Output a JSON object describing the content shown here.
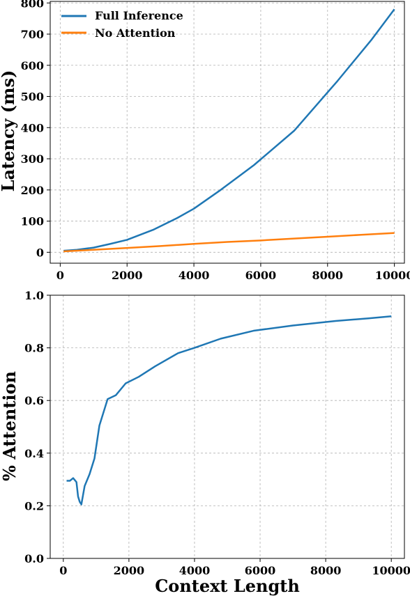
{
  "chart_data": [
    {
      "type": "line",
      "title": "",
      "xlabel": "",
      "ylabel": "Latency (ms)",
      "xlim": [
        -300,
        10300
      ],
      "ylim": [
        -35,
        805
      ],
      "xticks": [
        0,
        2000,
        4000,
        6000,
        8000,
        10000
      ],
      "yticks": [
        0,
        100,
        200,
        300,
        400,
        500,
        600,
        700,
        800
      ],
      "xtick_labels": [
        "0",
        "2000",
        "4000",
        "6000",
        "8000",
        "10000"
      ],
      "ytick_labels": [
        "0",
        "100",
        "200",
        "300",
        "400",
        "500",
        "600",
        "700",
        "800"
      ],
      "grid": true,
      "legend": "top-left",
      "series": [
        {
          "name": "Full Inference",
          "color": "#1f77b4",
          "x": [
            100,
            500,
            1000,
            1500,
            2000,
            2800,
            3500,
            4000,
            4800,
            5800,
            7000,
            8300,
            9300,
            10000
          ],
          "y": [
            5,
            8,
            15,
            27,
            40,
            73,
            110,
            140,
            200,
            280,
            390,
            550,
            680,
            780
          ]
        },
        {
          "name": "No Attention",
          "color": "#ff7f0e",
          "x": [
            100,
            1000,
            2000,
            3000,
            4000,
            5000,
            6000,
            7000,
            8000,
            9000,
            10000
          ],
          "y": [
            3,
            8,
            14,
            20,
            27,
            33,
            38,
            44,
            50,
            56,
            62
          ]
        }
      ]
    },
    {
      "type": "line",
      "title": "",
      "xlabel": "Context Length",
      "ylabel": "% Attention",
      "xlim": [
        -400,
        10400
      ],
      "ylim": [
        0.0,
        1.0
      ],
      "xticks": [
        0,
        2000,
        4000,
        6000,
        8000,
        10000
      ],
      "yticks": [
        0.0,
        0.2,
        0.4,
        0.6,
        0.8,
        1.0
      ],
      "xtick_labels": [
        "0",
        "2000",
        "4000",
        "6000",
        "8000",
        "10000"
      ],
      "ytick_labels": [
        "0.0",
        "0.2",
        "0.4",
        "0.6",
        "0.8",
        "1.0"
      ],
      "grid": true,
      "series": [
        {
          "color": "#1f77b4",
          "x": [
            100,
            200,
            300,
            400,
            450,
            500,
            550,
            650,
            800,
            950,
            1100,
            1350,
            1600,
            1900,
            2300,
            2800,
            3500,
            4000,
            4800,
            5800,
            7000,
            8300,
            9300,
            10000
          ],
          "y": [
            0.295,
            0.295,
            0.305,
            0.29,
            0.235,
            0.215,
            0.205,
            0.275,
            0.32,
            0.38,
            0.505,
            0.605,
            0.62,
            0.665,
            0.69,
            0.73,
            0.78,
            0.8,
            0.835,
            0.865,
            0.885,
            0.902,
            0.912,
            0.92
          ]
        }
      ]
    }
  ]
}
